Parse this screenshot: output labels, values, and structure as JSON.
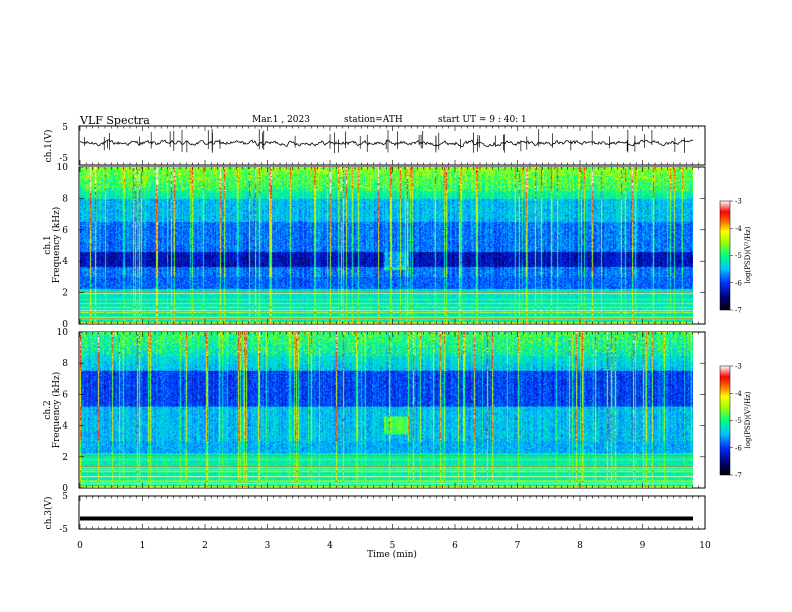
{
  "header": {
    "title": "VLF  Spectra",
    "date": "Mar.1  , 2023",
    "station": "station=ATH",
    "start": "start  UT  =   9 : 40: 1"
  },
  "chart_data": [
    {
      "type": "line",
      "name": "ch1-waveform",
      "ylabel": "ch.1(V)",
      "ylim": [
        -5,
        5
      ],
      "yticks": [
        "5",
        "-5"
      ],
      "xlim": [
        0,
        10
      ]
    },
    {
      "type": "heatmap",
      "name": "ch1-spectrogram",
      "ylabel": "ch.1\nFrequency  (kHz)",
      "ylabel_lines": [
        "ch.1",
        "Frequency  (kHz)"
      ],
      "ylim": [
        0,
        10
      ],
      "yticks": [
        "0",
        "2",
        "4",
        "6",
        "8",
        "10"
      ],
      "xlim": [
        0,
        9.8
      ],
      "colorbar": {
        "label": "log(PSD)(V²/Hz)",
        "range": [
          -7,
          -3
        ],
        "ticks": [
          "-3",
          "-4",
          "-5",
          "-6",
          "-7"
        ]
      }
    },
    {
      "type": "heatmap",
      "name": "ch2-spectrogram",
      "ylabel_lines": [
        "ch.2",
        "Frequency  (kHz)"
      ],
      "ylim": [
        0,
        10
      ],
      "yticks": [
        "0",
        "2",
        "4",
        "6",
        "8",
        "10"
      ],
      "xlim": [
        0,
        9.8
      ],
      "colorbar": {
        "label": "log(PSD)(V²/Hz)",
        "range": [
          -7,
          -3
        ],
        "ticks": [
          "-3",
          "-4",
          "-5",
          "-6",
          "-7"
        ]
      }
    },
    {
      "type": "line",
      "name": "ch3-waveform",
      "ylabel": "ch.3(V)",
      "ylim": [
        -5,
        5
      ],
      "yticks": [
        "5",
        "-5"
      ],
      "xlim": [
        0,
        10
      ],
      "xlabel": "Time  (min)",
      "xticks": [
        "0",
        "1",
        "2",
        "3",
        "4",
        "5",
        "6",
        "7",
        "8",
        "9",
        "10"
      ],
      "level": -1.8
    }
  ]
}
